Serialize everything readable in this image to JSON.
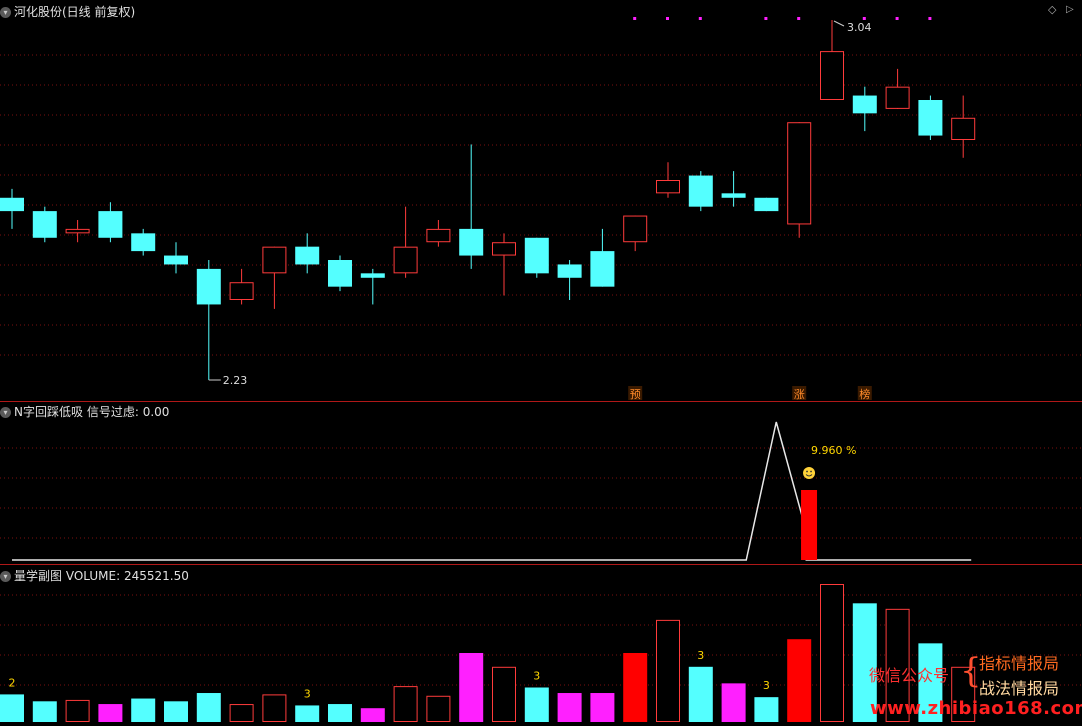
{
  "main_panel": {
    "title": "河化股份(日线 前复权)",
    "high_label": "3.04",
    "low_label": "2.23",
    "markers": [
      "预",
      "涨",
      "榜"
    ]
  },
  "indicator_panel": {
    "name": "N字回踩低吸",
    "field_label": "信号过虑:",
    "field_value": "0.00",
    "pct_label": "9.960 %",
    "icon": "smiley-icon"
  },
  "volume_panel": {
    "name": "量学副图",
    "field_label": "VOLUME:",
    "field_value": "245521.50",
    "counts": [
      "2",
      "3",
      "3",
      "3",
      "3"
    ]
  },
  "watermark": {
    "left": "微信公众号",
    "line1": "指标情报局",
    "line2": "战法情报局",
    "url": "www.zhibiao168.com"
  },
  "colors": {
    "background": "#000000",
    "up": "#ff3b3b",
    "down": "#54ffff",
    "grid": "#7a1010",
    "magenta": "#ff20ff",
    "red_fill": "#ff0000",
    "label_yellow": "#ffd700"
  },
  "chart_data": {
    "type": "candlestick",
    "price_annotations": {
      "high": 3.04,
      "low": 2.23
    },
    "candles": [
      {
        "o": 2.64,
        "c": 2.61,
        "h": 2.66,
        "l": 2.57,
        "dir": "down"
      },
      {
        "o": 2.61,
        "c": 2.55,
        "h": 2.62,
        "l": 2.54,
        "dir": "down"
      },
      {
        "o": 2.56,
        "c": 2.57,
        "h": 2.59,
        "l": 2.54,
        "dir": "up"
      },
      {
        "o": 2.61,
        "c": 2.55,
        "h": 2.63,
        "l": 2.54,
        "dir": "down"
      },
      {
        "o": 2.56,
        "c": 2.52,
        "h": 2.57,
        "l": 2.51,
        "dir": "down"
      },
      {
        "o": 2.51,
        "c": 2.49,
        "h": 2.54,
        "l": 2.47,
        "dir": "down"
      },
      {
        "o": 2.48,
        "c": 2.4,
        "h": 2.5,
        "l": 2.23,
        "dir": "down"
      },
      {
        "o": 2.41,
        "c": 2.45,
        "h": 2.48,
        "l": 2.4,
        "dir": "up"
      },
      {
        "o": 2.47,
        "c": 2.53,
        "h": 2.53,
        "l": 2.39,
        "dir": "up"
      },
      {
        "o": 2.53,
        "c": 2.49,
        "h": 2.56,
        "l": 2.47,
        "dir": "down"
      },
      {
        "o": 2.5,
        "c": 2.44,
        "h": 2.51,
        "l": 2.43,
        "dir": "down"
      },
      {
        "o": 2.47,
        "c": 2.46,
        "h": 2.48,
        "l": 2.4,
        "dir": "down"
      },
      {
        "o": 2.47,
        "c": 2.53,
        "h": 2.62,
        "l": 2.46,
        "dir": "up"
      },
      {
        "o": 2.54,
        "c": 2.57,
        "h": 2.59,
        "l": 2.53,
        "dir": "up"
      },
      {
        "o": 2.57,
        "c": 2.51,
        "h": 2.76,
        "l": 2.48,
        "dir": "down"
      },
      {
        "o": 2.51,
        "c": 2.54,
        "h": 2.56,
        "l": 2.42,
        "dir": "up"
      },
      {
        "o": 2.55,
        "c": 2.47,
        "h": 2.55,
        "l": 2.46,
        "dir": "down"
      },
      {
        "o": 2.49,
        "c": 2.46,
        "h": 2.5,
        "l": 2.41,
        "dir": "down"
      },
      {
        "o": 2.52,
        "c": 2.44,
        "h": 2.57,
        "l": 2.44,
        "dir": "down"
      },
      {
        "o": 2.54,
        "c": 2.6,
        "h": 2.6,
        "l": 2.52,
        "dir": "up"
      },
      {
        "o": 2.65,
        "c": 2.68,
        "h": 2.72,
        "l": 2.64,
        "dir": "up"
      },
      {
        "o": 2.69,
        "c": 2.62,
        "h": 2.7,
        "l": 2.61,
        "dir": "down"
      },
      {
        "o": 2.65,
        "c": 2.64,
        "h": 2.7,
        "l": 2.62,
        "dir": "down"
      },
      {
        "o": 2.64,
        "c": 2.61,
        "h": 2.64,
        "l": 2.61,
        "dir": "down"
      },
      {
        "o": 2.58,
        "c": 2.81,
        "h": 2.81,
        "l": 2.55,
        "dir": "up"
      },
      {
        "o": 2.86,
        "c": 2.97,
        "h": 3.04,
        "l": 2.86,
        "dir": "up"
      },
      {
        "o": 2.87,
        "c": 2.83,
        "h": 2.89,
        "l": 2.79,
        "dir": "down"
      },
      {
        "o": 2.84,
        "c": 2.89,
        "h": 2.93,
        "l": 2.84,
        "dir": "up"
      },
      {
        "o": 2.86,
        "c": 2.78,
        "h": 2.87,
        "l": 2.77,
        "dir": "down"
      },
      {
        "o": 2.77,
        "c": 2.82,
        "h": 2.87,
        "l": 2.73,
        "dir": "up"
      }
    ],
    "indicator_line": {
      "baseline": 0,
      "peak_index": 23.3,
      "peak_value": 1.0
    },
    "indicator_bar": {
      "index": 24.3,
      "value": 0.5
    },
    "volume": [
      {
        "v": 0.2,
        "c": "down"
      },
      {
        "v": 0.15,
        "c": "down"
      },
      {
        "v": 0.16,
        "c": "up"
      },
      {
        "v": 0.13,
        "c": "magenta"
      },
      {
        "v": 0.17,
        "c": "down"
      },
      {
        "v": 0.15,
        "c": "down"
      },
      {
        "v": 0.21,
        "c": "down"
      },
      {
        "v": 0.13,
        "c": "up"
      },
      {
        "v": 0.2,
        "c": "up"
      },
      {
        "v": 0.12,
        "c": "down"
      },
      {
        "v": 0.13,
        "c": "down"
      },
      {
        "v": 0.1,
        "c": "magenta"
      },
      {
        "v": 0.26,
        "c": "up"
      },
      {
        "v": 0.19,
        "c": "up"
      },
      {
        "v": 0.5,
        "c": "magenta"
      },
      {
        "v": 0.4,
        "c": "up"
      },
      {
        "v": 0.25,
        "c": "down"
      },
      {
        "v": 0.21,
        "c": "magenta"
      },
      {
        "v": 0.21,
        "c": "magenta"
      },
      {
        "v": 0.5,
        "c": "red"
      },
      {
        "v": 0.74,
        "c": "up"
      },
      {
        "v": 0.4,
        "c": "down"
      },
      {
        "v": 0.28,
        "c": "magenta"
      },
      {
        "v": 0.18,
        "c": "down"
      },
      {
        "v": 0.6,
        "c": "red"
      },
      {
        "v": 1.0,
        "c": "up"
      },
      {
        "v": 0.86,
        "c": "down"
      },
      {
        "v": 0.82,
        "c": "up"
      },
      {
        "v": 0.57,
        "c": "down"
      },
      {
        "v": 0.4,
        "c": "up"
      }
    ],
    "count_marker_indices": [
      0,
      9,
      16,
      21,
      23
    ]
  }
}
